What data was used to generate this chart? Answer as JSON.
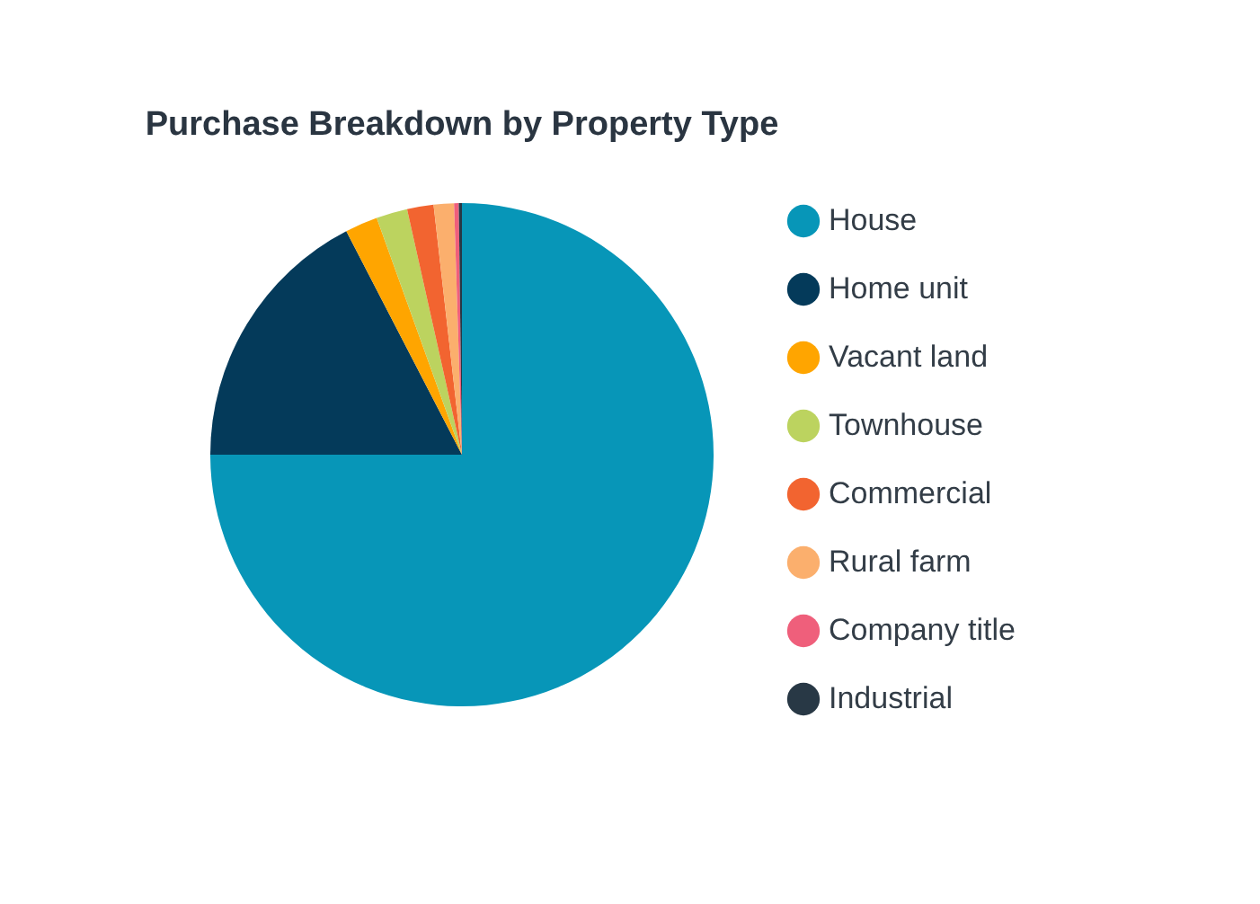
{
  "chart_data": {
    "type": "pie",
    "title": "Purchase Breakdown by Property Type",
    "categories": [
      "House",
      "Home unit",
      "Vacant land",
      "Townhouse",
      "Commercial",
      "Rural farm",
      "Company title",
      "Industrial"
    ],
    "values": [
      75.0,
      17.4,
      2.1,
      2.0,
      1.7,
      1.3,
      0.3,
      0.2
    ],
    "colors": [
      "#0796b8",
      "#043a5a",
      "#ffa500",
      "#bcd35f",
      "#f26430",
      "#fbaf6d",
      "#ef5f7b",
      "#283845"
    ],
    "legend": "right"
  }
}
